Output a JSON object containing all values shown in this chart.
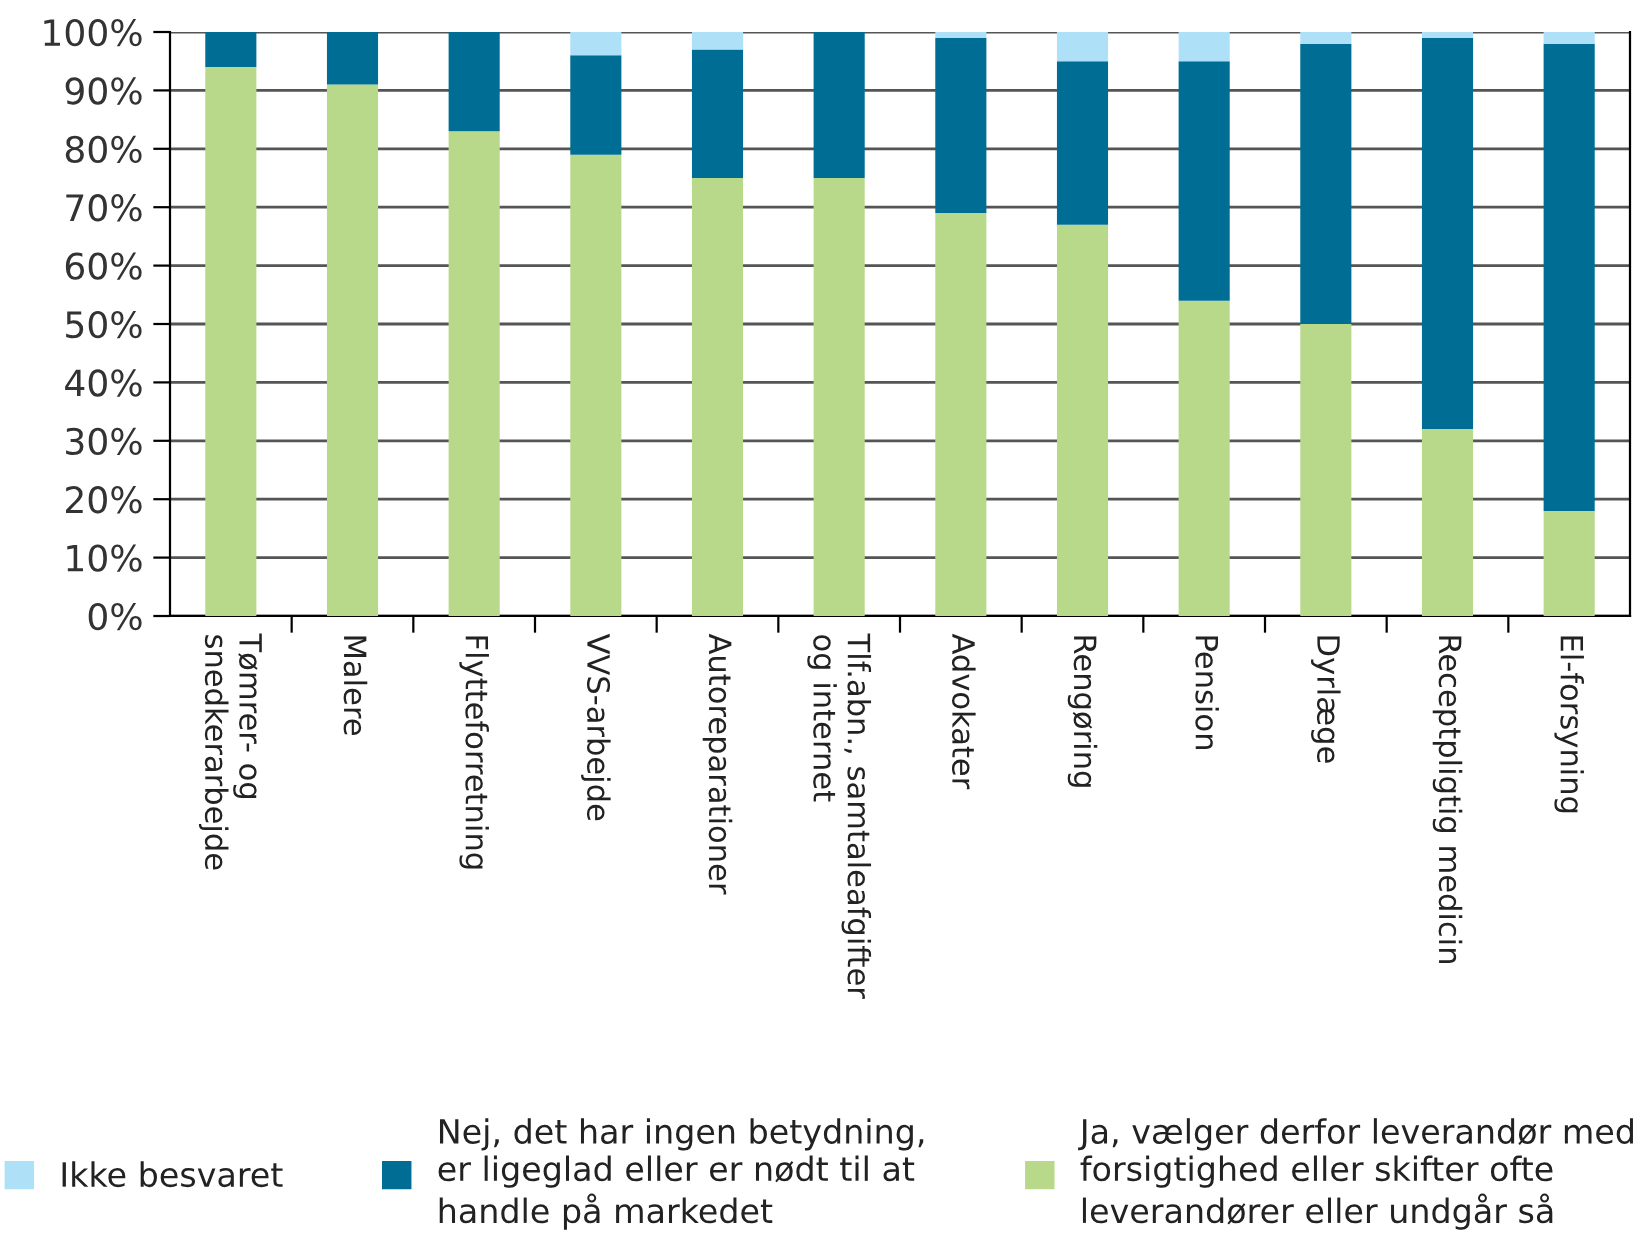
{
  "chart_data": {
    "type": "bar",
    "stacked": true,
    "categories": [
      "Tømrer- og\nsnedkerarbejde",
      "Malere",
      "Flytteforretning",
      "VVS-arbejde",
      "Autoreparationer",
      "Tlf.abn., samtaleafgifter\nog internet",
      "Advokater",
      "Rengøring",
      "Pension",
      "Dyrlæge",
      "Receptpligtig medicin",
      "El-forsyning"
    ],
    "series": [
      {
        "name": "Ja, vælger derfor leverandør med\nforsigtighed eller skifter ofte\nleverandører eller undgår så",
        "color": "#b8d98a",
        "values": [
          94,
          91,
          83,
          79,
          75,
          75,
          69,
          67,
          54,
          50,
          32,
          18
        ]
      },
      {
        "name": "Nej, det har ingen betydning,\ner ligeglad eller er nødt til at\nhandle på markedet",
        "color": "#006e94",
        "values": [
          6,
          9,
          17,
          17,
          22,
          25,
          30,
          28,
          41,
          48,
          67,
          80
        ]
      },
      {
        "name": "Ikke besvaret",
        "color": "#aee0f8",
        "values": [
          0,
          0,
          0,
          4,
          3,
          0,
          1,
          5,
          5,
          2,
          1,
          2
        ]
      }
    ],
    "ylim": [
      0,
      100
    ],
    "yticks": [
      {
        "value": 0,
        "label": "0%"
      },
      {
        "value": 10,
        "label": "10%"
      },
      {
        "value": 20,
        "label": "20%"
      },
      {
        "value": 30,
        "label": "30%"
      },
      {
        "value": 40,
        "label": "40%"
      },
      {
        "value": 50,
        "label": "50%"
      },
      {
        "value": 60,
        "label": "60%"
      },
      {
        "value": 70,
        "label": "70%"
      },
      {
        "value": 80,
        "label": "80%"
      },
      {
        "value": 90,
        "label": "90%"
      },
      {
        "value": 100,
        "label": "100%"
      }
    ],
    "grid": "y",
    "legend": "bottom"
  }
}
